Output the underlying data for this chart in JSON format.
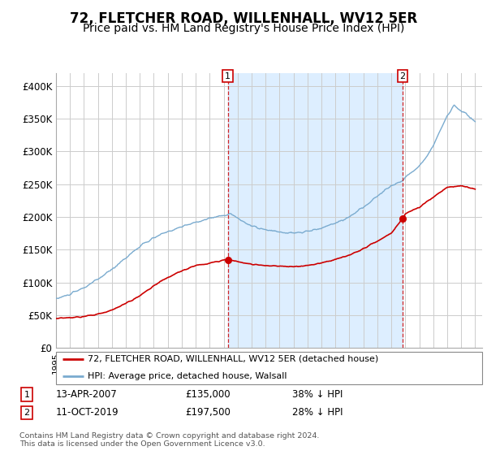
{
  "title": "72, FLETCHER ROAD, WILLENHALL, WV12 5ER",
  "subtitle": "Price paid vs. HM Land Registry's House Price Index (HPI)",
  "ylabel_ticks": [
    "£0",
    "£50K",
    "£100K",
    "£150K",
    "£200K",
    "£250K",
    "£300K",
    "£350K",
    "£400K"
  ],
  "ytick_vals": [
    0,
    50000,
    100000,
    150000,
    200000,
    250000,
    300000,
    350000,
    400000
  ],
  "ylim": [
    0,
    420000
  ],
  "xlim_start": 1995.0,
  "xlim_end": 2025.5,
  "transaction1": {
    "label": "1",
    "date": "13-APR-2007",
    "price": 135000,
    "note": "38% ↓ HPI",
    "x": 2007.3
  },
  "transaction2": {
    "label": "2",
    "date": "11-OCT-2019",
    "price": 197500,
    "note": "28% ↓ HPI",
    "x": 2019.8
  },
  "legend_line1": "72, FLETCHER ROAD, WILLENHALL, WV12 5ER (detached house)",
  "legend_line2": "HPI: Average price, detached house, Walsall",
  "footnote": "Contains HM Land Registry data © Crown copyright and database right 2024.\nThis data is licensed under the Open Government Licence v3.0.",
  "red_color": "#cc0000",
  "blue_color": "#7aabcf",
  "shade_color": "#ddeeff",
  "background_color": "#ffffff",
  "grid_color": "#cccccc",
  "title_fontsize": 12,
  "subtitle_fontsize": 10
}
